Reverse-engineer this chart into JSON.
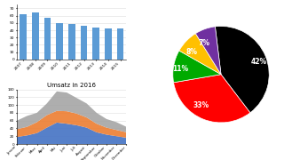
{
  "bar_years": [
    "2007",
    "2008",
    "2009",
    "2010",
    "2011",
    "2012",
    "2013",
    "2014",
    "2015"
  ],
  "bar_values": [
    62,
    65,
    57,
    50,
    49,
    46,
    44,
    43,
    43
  ],
  "bar_color": "#5b9bd5",
  "bar_ylim": [
    0,
    75
  ],
  "bar_yticks": [
    0,
    10,
    20,
    30,
    40,
    50,
    60,
    70
  ],
  "area_title": "Umsatz in 2016",
  "area_months": [
    "Januar",
    "Februar",
    "März",
    "April",
    "Mai",
    "Juni",
    "Juli",
    "August",
    "September",
    "Oktober",
    "November",
    "Dezember"
  ],
  "area_blue": [
    18,
    22,
    28,
    42,
    55,
    52,
    48,
    42,
    30,
    24,
    20,
    16
  ],
  "area_orange": [
    20,
    22,
    28,
    32,
    30,
    32,
    30,
    26,
    22,
    18,
    16,
    14
  ],
  "area_gray": [
    22,
    28,
    24,
    30,
    50,
    48,
    40,
    36,
    28,
    22,
    20,
    14
  ],
  "area_colors": [
    "#4472c4",
    "#ed7d31",
    "#a5a5a5"
  ],
  "area_ylim": [
    0,
    140
  ],
  "area_yticks": [
    0,
    20,
    40,
    60,
    80,
    100,
    120,
    140
  ],
  "pie_values": [
    42,
    33,
    11,
    8,
    7
  ],
  "pie_colors": [
    "#000000",
    "#ff0000",
    "#00aa00",
    "#ffc000",
    "#7030a0"
  ],
  "pie_labels": [
    "42%",
    "33%",
    "11%",
    "8%",
    "7%"
  ],
  "pie_startangle": 97,
  "bg_color": "#ffffff"
}
